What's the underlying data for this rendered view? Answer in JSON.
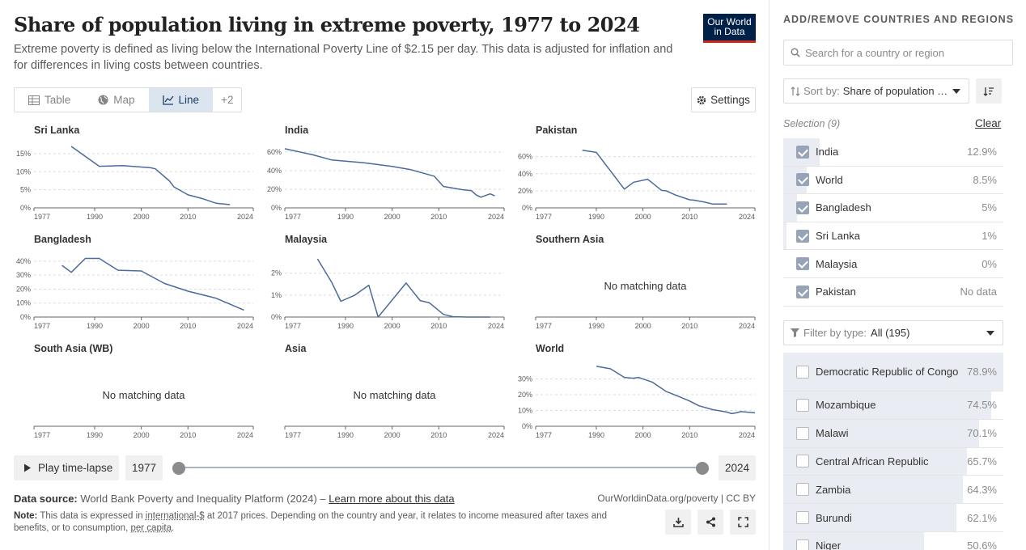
{
  "header": {
    "title": "Share of population living in extreme poverty, 1977 to 2024",
    "subtitle": "Extreme poverty is defined as living below the International Poverty Line of $2.15 per day. This data is adjusted for inflation and for differences in living costs between countries.",
    "logo_line1": "Our World",
    "logo_line2": "in Data"
  },
  "tabs": [
    {
      "label": "Table",
      "icon": "table-icon"
    },
    {
      "label": "Map",
      "icon": "globe-icon"
    },
    {
      "label": "Line",
      "icon": "line-chart-icon",
      "active": true
    },
    {
      "label": "+2"
    }
  ],
  "settings_label": "Settings",
  "timeline": {
    "play_label": "Play time-lapse",
    "start_year": "1977",
    "end_year": "2024"
  },
  "footer": {
    "source_label": "Data source:",
    "source_text": "World Bank Poverty and Inequality Platform (2024) –",
    "learn_more": "Learn more about this data",
    "attribution": "OurWorldinData.org/poverty | CC BY",
    "note_label": "Note:",
    "note_pre": "This data is expressed in",
    "note_term1": "international-$",
    "note_mid": "at 2017 prices. Depending on the country and year, it relates to income measured after taxes and benefits, or to consumption,",
    "note_term2": "per capita",
    "note_end": "."
  },
  "sidebar": {
    "title": "ADD/REMOVE COUNTRIES AND REGIONS",
    "search_placeholder": "Search for a country or region",
    "sort_label": "Sort by:",
    "sort_value": "Share of population i...",
    "selection_label": "Selection (9)",
    "clear_label": "Clear",
    "selected": [
      {
        "name": "India",
        "value": "12.9%",
        "bar": 0.164
      },
      {
        "name": "World",
        "value": "8.5%",
        "bar": 0.108
      },
      {
        "name": "Bangladesh",
        "value": "5%",
        "bar": 0.063
      },
      {
        "name": "Sri Lanka",
        "value": "1%",
        "bar": 0.013
      },
      {
        "name": "Malaysia",
        "value": "0%",
        "bar": 0
      },
      {
        "name": "Pakistan",
        "value": "No data",
        "bar": 0
      }
    ],
    "filter_label": "Filter by type:",
    "filter_value": "All (195)",
    "all": [
      {
        "name": "Democratic Republic of Congo",
        "value": "78.9%",
        "bar": 1.0
      },
      {
        "name": "Mozambique",
        "value": "74.5%",
        "bar": 0.944
      },
      {
        "name": "Malawi",
        "value": "70.1%",
        "bar": 0.888
      },
      {
        "name": "Central African Republic",
        "value": "65.7%",
        "bar": 0.833
      },
      {
        "name": "Zambia",
        "value": "64.3%",
        "bar": 0.815
      },
      {
        "name": "Burundi",
        "value": "62.1%",
        "bar": 0.787
      },
      {
        "name": "Niger",
        "value": "50.6%",
        "bar": 0.641
      }
    ]
  },
  "chart_data": [
    {
      "type": "line",
      "title": "Sri Lanka",
      "xlim": [
        1977,
        2024
      ],
      "xticks": [
        "1977",
        "1990",
        "2000",
        "2010",
        "2024"
      ],
      "yticks": [
        "0%",
        "5%",
        "10%",
        "15%"
      ],
      "ylim": [
        0,
        17
      ],
      "values": [
        [
          1985,
          17
        ],
        [
          1991,
          11.5
        ],
        [
          1996,
          11.7
        ],
        [
          2002,
          11.1
        ],
        [
          2003,
          10.8
        ],
        [
          2006,
          7.5
        ],
        [
          2007,
          5.8
        ],
        [
          2010,
          3.6
        ],
        [
          2013,
          2.6
        ],
        [
          2016,
          1.3
        ],
        [
          2019,
          0.9
        ]
      ]
    },
    {
      "type": "line",
      "title": "India",
      "xlim": [
        1977,
        2024
      ],
      "xticks": [
        "1977",
        "1990",
        "2000",
        "2010",
        "2024"
      ],
      "yticks": [
        "0%",
        "20%",
        "40%",
        "60%"
      ],
      "ylim": [
        0,
        66
      ],
      "values": [
        [
          1977,
          63.5
        ],
        [
          1983,
          57
        ],
        [
          1987,
          51.5
        ],
        [
          1994,
          48.5
        ],
        [
          2000,
          44.5
        ],
        [
          2004,
          41
        ],
        [
          2009,
          34
        ],
        [
          2011,
          23
        ],
        [
          2015,
          19.5
        ],
        [
          2017,
          18.5
        ],
        [
          2018,
          14
        ],
        [
          2019,
          11.5
        ],
        [
          2021,
          15
        ],
        [
          2022,
          12.9
        ]
      ]
    },
    {
      "type": "line",
      "title": "Pakistan",
      "xlim": [
        1977,
        2024
      ],
      "xticks": [
        "1977",
        "1990",
        "2000",
        "2010",
        "2024"
      ],
      "yticks": [
        "0%",
        "20%",
        "40%",
        "60%"
      ],
      "ylim": [
        0,
        72
      ],
      "values": [
        [
          1987,
          67.5
        ],
        [
          1990,
          65
        ],
        [
          1996,
          22
        ],
        [
          1998,
          30
        ],
        [
          2001,
          33.5
        ],
        [
          2004,
          20.5
        ],
        [
          2005,
          20
        ],
        [
          2007,
          15
        ],
        [
          2010,
          9.5
        ],
        [
          2011,
          9
        ],
        [
          2013,
          7
        ],
        [
          2015,
          4.5
        ],
        [
          2018,
          4.5
        ]
      ]
    },
    {
      "type": "line",
      "title": "Bangladesh",
      "xlim": [
        1977,
        2024
      ],
      "xticks": [
        "1977",
        "1990",
        "2000",
        "2010",
        "2024"
      ],
      "yticks": [
        "0%",
        "10%",
        "20%",
        "30%",
        "40%"
      ],
      "ylim": [
        0,
        44
      ],
      "values": [
        [
          1983,
          37
        ],
        [
          1985,
          32
        ],
        [
          1988,
          42
        ],
        [
          1991,
          42
        ],
        [
          1995,
          33.5
        ],
        [
          2000,
          33
        ],
        [
          2005,
          24
        ],
        [
          2010,
          18.5
        ],
        [
          2016,
          13.5
        ],
        [
          2022,
          5
        ]
      ]
    },
    {
      "type": "line",
      "title": "Malaysia",
      "xlim": [
        1977,
        2024
      ],
      "xticks": [
        "1977",
        "1990",
        "2000",
        "2010",
        "2024"
      ],
      "yticks": [
        "0%",
        "1%",
        "2%"
      ],
      "ylim": [
        0,
        2.8
      ],
      "values": [
        [
          1984,
          2.65
        ],
        [
          1987,
          1.6
        ],
        [
          1989,
          0.72
        ],
        [
          1992,
          1
        ],
        [
          1995,
          1.45
        ],
        [
          1997,
          0
        ],
        [
          2003,
          1.55
        ],
        [
          2006,
          0.75
        ],
        [
          2008,
          0.65
        ],
        [
          2011,
          0.12
        ],
        [
          2013,
          0.02
        ],
        [
          2016,
          0
        ],
        [
          2021,
          0
        ]
      ]
    },
    {
      "type": "line",
      "title": "Southern Asia",
      "xlim": [
        1977,
        2024
      ],
      "xticks": [
        "1977",
        "1990",
        "2000",
        "2010",
        "2024"
      ],
      "no_data": "No matching data"
    },
    {
      "type": "line",
      "title": "South Asia (WB)",
      "xlim": [
        1977,
        2024
      ],
      "xticks": [
        "1977",
        "1990",
        "2000",
        "2010",
        "2024"
      ],
      "no_data": "No matching data"
    },
    {
      "type": "line",
      "title": "Asia",
      "xlim": [
        1977,
        2024
      ],
      "xticks": [
        "1977",
        "1990",
        "2000",
        "2010",
        "2024"
      ],
      "no_data": "No matching data"
    },
    {
      "type": "line",
      "title": "World",
      "xlim": [
        1977,
        2024
      ],
      "xticks": [
        "1977",
        "1990",
        "2000",
        "2010",
        "2024"
      ],
      "yticks": [
        "0%",
        "10%",
        "20%",
        "30%"
      ],
      "ylim": [
        0,
        39
      ],
      "values": [
        [
          1990,
          38
        ],
        [
          1993,
          36.5
        ],
        [
          1996,
          31
        ],
        [
          1998,
          30.5
        ],
        [
          1999,
          31
        ],
        [
          2002,
          28
        ],
        [
          2005,
          22
        ],
        [
          2008,
          18.5
        ],
        [
          2010,
          16
        ],
        [
          2012,
          13
        ],
        [
          2015,
          10.5
        ],
        [
          2018,
          9
        ],
        [
          2019,
          8
        ],
        [
          2020,
          8.5
        ],
        [
          2021,
          9.3
        ],
        [
          2024,
          8.5
        ]
      ]
    }
  ],
  "colors": {
    "line": "#4c6a9c",
    "grid": "#dddddd",
    "axis": "#666666",
    "label": "#5b5b5b",
    "title": "#333333"
  }
}
